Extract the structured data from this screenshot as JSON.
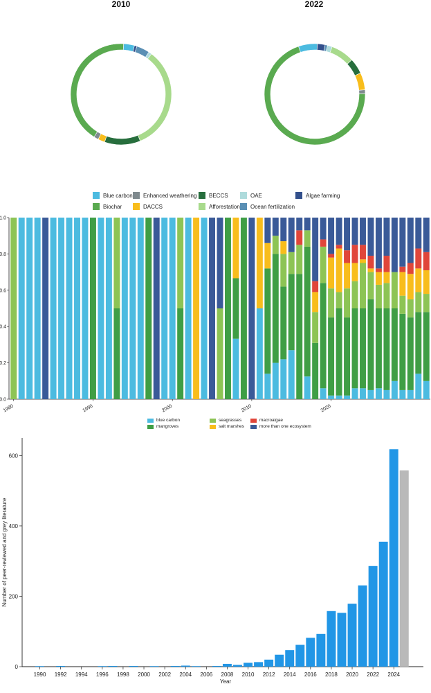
{
  "colors": {
    "blue_carbon": "#4cbbe0",
    "biochar": "#5aaa50",
    "enhanced_weathering": "#7f8a8e",
    "daccs": "#f8bd1c",
    "beccs": "#276e3d",
    "afforestation": "#a8da8c",
    "oae": "#aedbdc",
    "ocean_fertilization": "#5a8fb4",
    "algae_farming": "#33508c",
    "eco_blue_carbon": "#4cbbe0",
    "eco_mangroves": "#3f9e45",
    "eco_seagrasses": "#8dc455",
    "eco_salt_marshes": "#f8bd1c",
    "eco_macroalgae": "#e0463a",
    "eco_multi": "#3a5a98",
    "bar_blue": "#2196e6",
    "bar_grey": "#b9b9b9"
  },
  "chart_data": [
    {
      "type": "pie",
      "title": "2010",
      "slices": [
        {
          "name": "Blue carbon",
          "value": 3.5
        },
        {
          "name": "Algae farming",
          "value": 0.8
        },
        {
          "name": "Ocean fertilization",
          "value": 4.2
        },
        {
          "name": "OAE",
          "value": 1.0
        },
        {
          "name": "Afforestation",
          "value": 33.5
        },
        {
          "name": "BECCS",
          "value": 11.5
        },
        {
          "name": "DACCS",
          "value": 2.2
        },
        {
          "name": "Enhanced weathering",
          "value": 1.5
        },
        {
          "name": "Biochar",
          "value": 41.8
        }
      ]
    },
    {
      "type": "pie",
      "title": "2022",
      "slices": [
        {
          "name": "Algae farming",
          "value": 2.5
        },
        {
          "name": "Ocean fertilization",
          "value": 0.8
        },
        {
          "name": "OAE",
          "value": 1.5
        },
        {
          "name": "Afforestation",
          "value": 7.5
        },
        {
          "name": "BECCS",
          "value": 5.0
        },
        {
          "name": "DACCS",
          "value": 5.5
        },
        {
          "name": "Enhanced weathering",
          "value": 1.2
        },
        {
          "name": "Biochar",
          "value": 70.0
        },
        {
          "name": "Blue carbon",
          "value": 6.0
        }
      ]
    },
    {
      "type": "bar",
      "stacked": true,
      "x_start": 1980,
      "x_ticks": [
        1980,
        1990,
        2000,
        2010,
        2020
      ],
      "ylim": [
        0,
        1.0
      ],
      "y_ticks": [
        "0.0",
        "0.2",
        "0.4",
        "0.6",
        "0.8",
        "1.0"
      ],
      "series_keys": [
        "eco_blue_carbon",
        "eco_mangroves",
        "eco_seagrasses",
        "eco_salt_marshes",
        "eco_macroalgae",
        "eco_multi"
      ],
      "columns": [
        [
          0,
          0,
          1,
          0,
          0,
          0
        ],
        [
          1,
          0,
          0,
          0,
          0,
          0
        ],
        [
          1,
          0,
          0,
          0,
          0,
          0
        ],
        [
          1,
          0,
          0,
          0,
          0,
          0
        ],
        [
          0,
          0,
          0,
          0,
          0,
          1
        ],
        [
          1,
          0,
          0,
          0,
          0,
          0
        ],
        [
          1,
          0,
          0,
          0,
          0,
          0
        ],
        [
          1,
          0,
          0,
          0,
          0,
          0
        ],
        [
          1,
          0,
          0,
          0,
          0,
          0
        ],
        [
          1,
          0,
          0,
          0,
          0,
          0
        ],
        [
          0,
          1,
          0,
          0,
          0,
          0
        ],
        [
          1,
          0,
          0,
          0,
          0,
          0
        ],
        [
          1,
          0,
          0,
          0,
          0,
          0
        ],
        [
          0,
          0.5,
          0.5,
          0,
          0,
          0
        ],
        [
          1,
          0,
          0,
          0,
          0,
          0
        ],
        [
          1,
          0,
          0,
          0,
          0,
          0
        ],
        [
          1,
          0,
          0,
          0,
          0,
          0
        ],
        [
          0,
          1,
          0,
          0,
          0,
          0
        ],
        [
          0,
          0,
          0,
          0,
          0,
          1
        ],
        [
          1,
          0,
          0,
          0,
          0,
          0
        ],
        [
          1,
          0,
          0,
          0,
          0,
          0
        ],
        [
          0,
          0.5,
          0.5,
          0,
          0,
          0
        ],
        [
          1,
          0,
          0,
          0,
          0,
          0
        ],
        [
          0,
          0,
          0,
          1,
          0,
          0
        ],
        [
          1,
          0,
          0,
          0,
          0,
          0
        ],
        [
          0,
          0,
          0,
          0,
          0,
          1
        ],
        [
          0,
          0,
          0.5,
          0,
          0,
          0.5
        ],
        [
          0,
          1,
          0,
          0,
          0,
          0
        ],
        [
          0.333,
          0.333,
          0,
          0.334,
          0,
          0
        ],
        [
          0,
          1,
          0,
          0,
          0,
          0
        ],
        [
          0,
          0,
          0,
          0,
          0,
          1
        ],
        [
          0.5,
          0,
          0,
          0.5,
          0,
          0
        ],
        [
          0.14,
          0.58,
          0,
          0.14,
          0,
          0.14
        ],
        [
          0.2,
          0.6,
          0.1,
          0,
          0,
          0.1
        ],
        [
          0.22,
          0.4,
          0.18,
          0.07,
          0,
          0.13
        ],
        [
          0.27,
          0.42,
          0.12,
          0,
          0,
          0.19
        ],
        [
          0,
          0.69,
          0.16,
          0,
          0.08,
          0.07
        ],
        [
          0.125,
          0.715,
          0.09,
          0,
          0,
          0.07
        ],
        [
          0,
          0.31,
          0.17,
          0.11,
          0.06,
          0.35
        ],
        [
          0.06,
          0.58,
          0.2,
          0,
          0.04,
          0.12
        ],
        [
          0.02,
          0.43,
          0.16,
          0.17,
          0.02,
          0.2
        ],
        [
          0.02,
          0.48,
          0.09,
          0.24,
          0.02,
          0.15
        ],
        [
          0.02,
          0.43,
          0.16,
          0.14,
          0.07,
          0.18
        ],
        [
          0.06,
          0.44,
          0.15,
          0.1,
          0.1,
          0.15
        ],
        [
          0.06,
          0.44,
          0.25,
          0.02,
          0.08,
          0.15
        ],
        [
          0.05,
          0.5,
          0.15,
          0.02,
          0.07,
          0.21
        ],
        [
          0.06,
          0.44,
          0.13,
          0.07,
          0.02,
          0.28
        ],
        [
          0.05,
          0.45,
          0.14,
          0.06,
          0.09,
          0.21
        ],
        [
          0.1,
          0.4,
          0.2,
          0,
          0,
          0.3
        ],
        [
          0.05,
          0.42,
          0.1,
          0.13,
          0.03,
          0.27
        ],
        [
          0.05,
          0.4,
          0.1,
          0.14,
          0.06,
          0.25
        ],
        [
          0.14,
          0.34,
          0.11,
          0.13,
          0.11,
          0.17
        ],
        [
          0.1,
          0.38,
          0.1,
          0.13,
          0.1,
          0.19
        ]
      ]
    },
    {
      "type": "bar",
      "xlabel": "Year",
      "ylabel": "Number of peer-reviewed and grey literature",
      "ylim": [
        0,
        650
      ],
      "y_ticks": [
        0,
        200,
        400,
        600
      ],
      "x_tick_labels": [
        "1990",
        "1992",
        "1994",
        "1996",
        "1998",
        "2000",
        "2002",
        "2004",
        "2006",
        "2008",
        "2010",
        "2012",
        "2014",
        "2016",
        "2018",
        "2020",
        "2022",
        "2024"
      ],
      "categories": [
        1990,
        1991,
        1992,
        1993,
        1994,
        1995,
        1996,
        1997,
        1998,
        1999,
        2000,
        2001,
        2002,
        2003,
        2004,
        2005,
        2006,
        2007,
        2008,
        2009,
        2010,
        2011,
        2012,
        2013,
        2014,
        2015,
        2016,
        2017,
        2018,
        2019,
        2020,
        2021,
        2022,
        2023,
        2024,
        2025
      ],
      "values": [
        1,
        0,
        2,
        0,
        0,
        0,
        1,
        2,
        0,
        2,
        0,
        1,
        0,
        2,
        3,
        1,
        0,
        2,
        8,
        5,
        11,
        13,
        20,
        34,
        47,
        62,
        82,
        93,
        158,
        153,
        179,
        231,
        286,
        355,
        618,
        558
      ],
      "highlight_last": true
    }
  ],
  "legend_top": {
    "items": [
      {
        "label": "Blue carbon",
        "key": "blue_carbon"
      },
      {
        "label": "Enhanced weathering",
        "key": "enhanced_weathering"
      },
      {
        "label": "BECCS",
        "key": "beccs"
      },
      {
        "label": "OAE",
        "key": "oae"
      },
      {
        "label": "Algae farming",
        "key": "algae_farming"
      },
      {
        "label": "Biochar",
        "key": "biochar"
      },
      {
        "label": "DACCS",
        "key": "daccs"
      },
      {
        "label": "Afforestation",
        "key": "afforestation"
      },
      {
        "label": "Ocean fertilization",
        "key": "ocean_fertilization"
      }
    ]
  },
  "legend_mid": {
    "items": [
      {
        "label": "blue carbon",
        "key": "eco_blue_carbon"
      },
      {
        "label": "seagrasses",
        "key": "eco_seagrasses"
      },
      {
        "label": "macroalgae",
        "key": "eco_macroalgae"
      },
      {
        "label": "mangroves",
        "key": "eco_mangroves"
      },
      {
        "label": "salt marshes",
        "key": "eco_salt_marshes"
      },
      {
        "label": "more than one ecosystem",
        "key": "eco_multi"
      }
    ]
  }
}
